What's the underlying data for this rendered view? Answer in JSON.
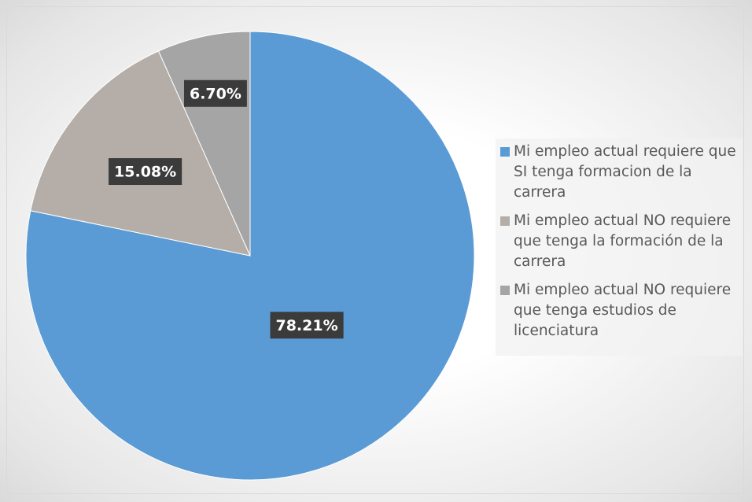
{
  "chart_data": {
    "type": "pie",
    "categories": [
      "Mi empleo actual requiere que SI tenga formacion de la carrera",
      "Mi empleo actual NO requiere que tenga la formación de la carrera",
      "Mi empleo actual NO requiere que tenga estudios de licenciatura"
    ],
    "values": [
      78.21,
      15.08,
      6.7
    ],
    "value_labels": [
      "78.21%",
      "15.08%",
      "6.70%"
    ],
    "colors": [
      "#5b9bd5",
      "#b5aea8",
      "#a5a5a5"
    ],
    "legend": "right"
  }
}
